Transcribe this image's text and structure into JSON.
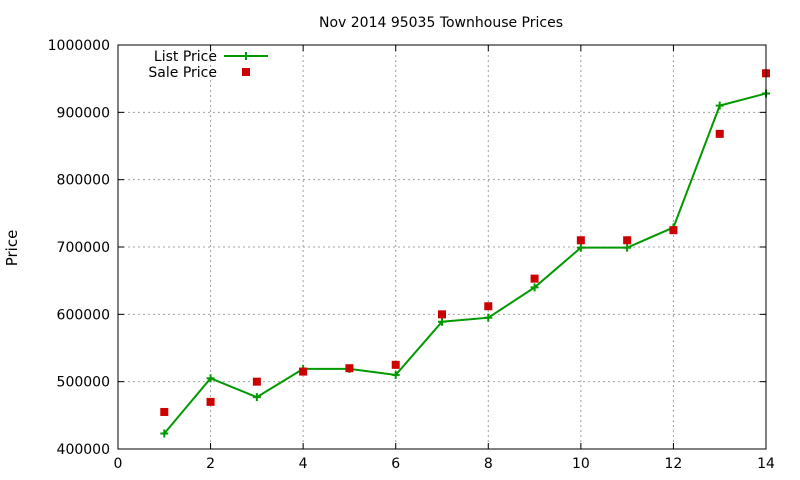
{
  "chart_data": {
    "type": "line",
    "title": "Nov 2014 95035 Townhouse Prices",
    "xlabel": "",
    "ylabel": "Price",
    "xlim": [
      0,
      14
    ],
    "ylim": [
      400000,
      1000000
    ],
    "x_ticks": [
      0,
      2,
      4,
      6,
      8,
      10,
      12,
      14
    ],
    "y_ticks": [
      400000,
      500000,
      600000,
      700000,
      800000,
      900000,
      1000000
    ],
    "grid": true,
    "legend": "top-left",
    "series": [
      {
        "name": "List Price",
        "style": "line-with-plus-markers",
        "color": "#009900",
        "x": [
          1,
          2,
          3,
          4,
          5,
          6,
          7,
          8,
          9,
          10,
          11,
          12,
          13,
          14
        ],
        "y": [
          423000,
          505000,
          477000,
          519000,
          519000,
          510000,
          589000,
          595000,
          640000,
          699000,
          699000,
          729000,
          910000,
          928000
        ]
      },
      {
        "name": "Sale Price",
        "style": "square-points",
        "color": "#cc0000",
        "x": [
          1,
          2,
          3,
          4,
          5,
          6,
          7,
          8,
          9,
          10,
          11,
          12,
          13,
          14
        ],
        "y": [
          455000,
          470000,
          500000,
          515000,
          520000,
          525000,
          600000,
          612000,
          653000,
          710000,
          710000,
          725000,
          868000,
          958000
        ]
      }
    ]
  }
}
